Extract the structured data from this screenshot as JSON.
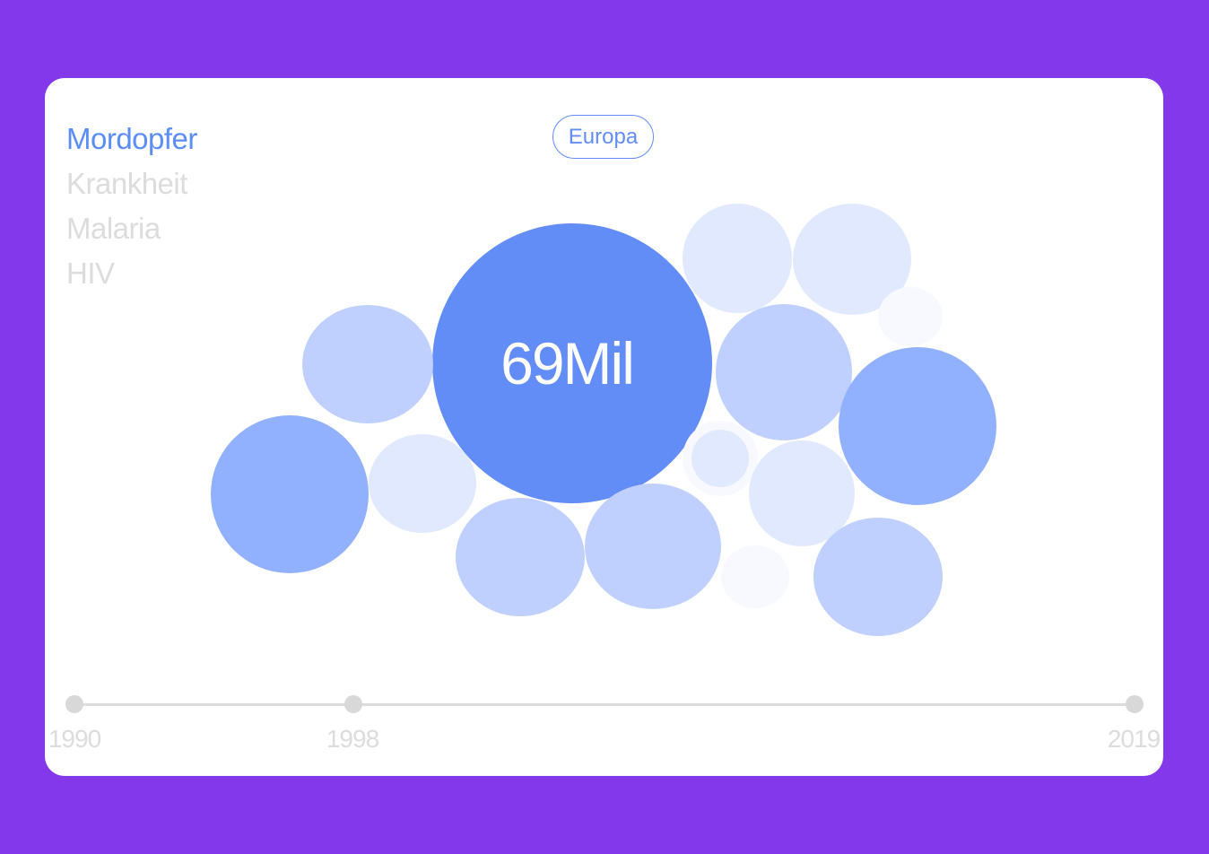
{
  "categories": [
    {
      "label": "Mordopfer",
      "active": true
    },
    {
      "label": "Krankheit",
      "active": false
    },
    {
      "label": "Malaria",
      "active": false
    },
    {
      "label": "HIV",
      "active": false
    }
  ],
  "region_label": "Europa",
  "highlight_value": "69Mil",
  "colors": {
    "background": "#8338ea",
    "accent": "#628cf6",
    "shades": [
      "#628cf6",
      "#91b0fd",
      "#bfd0fe",
      "#e1e9fe",
      "#f7f9ff"
    ]
  },
  "timeline": {
    "years": [
      "1990",
      "1998",
      "2019"
    ],
    "selected": "1998"
  },
  "chart_data": {
    "type": "bubble",
    "highlighted_value_label": "69Mil",
    "bubble_count": 15
  }
}
